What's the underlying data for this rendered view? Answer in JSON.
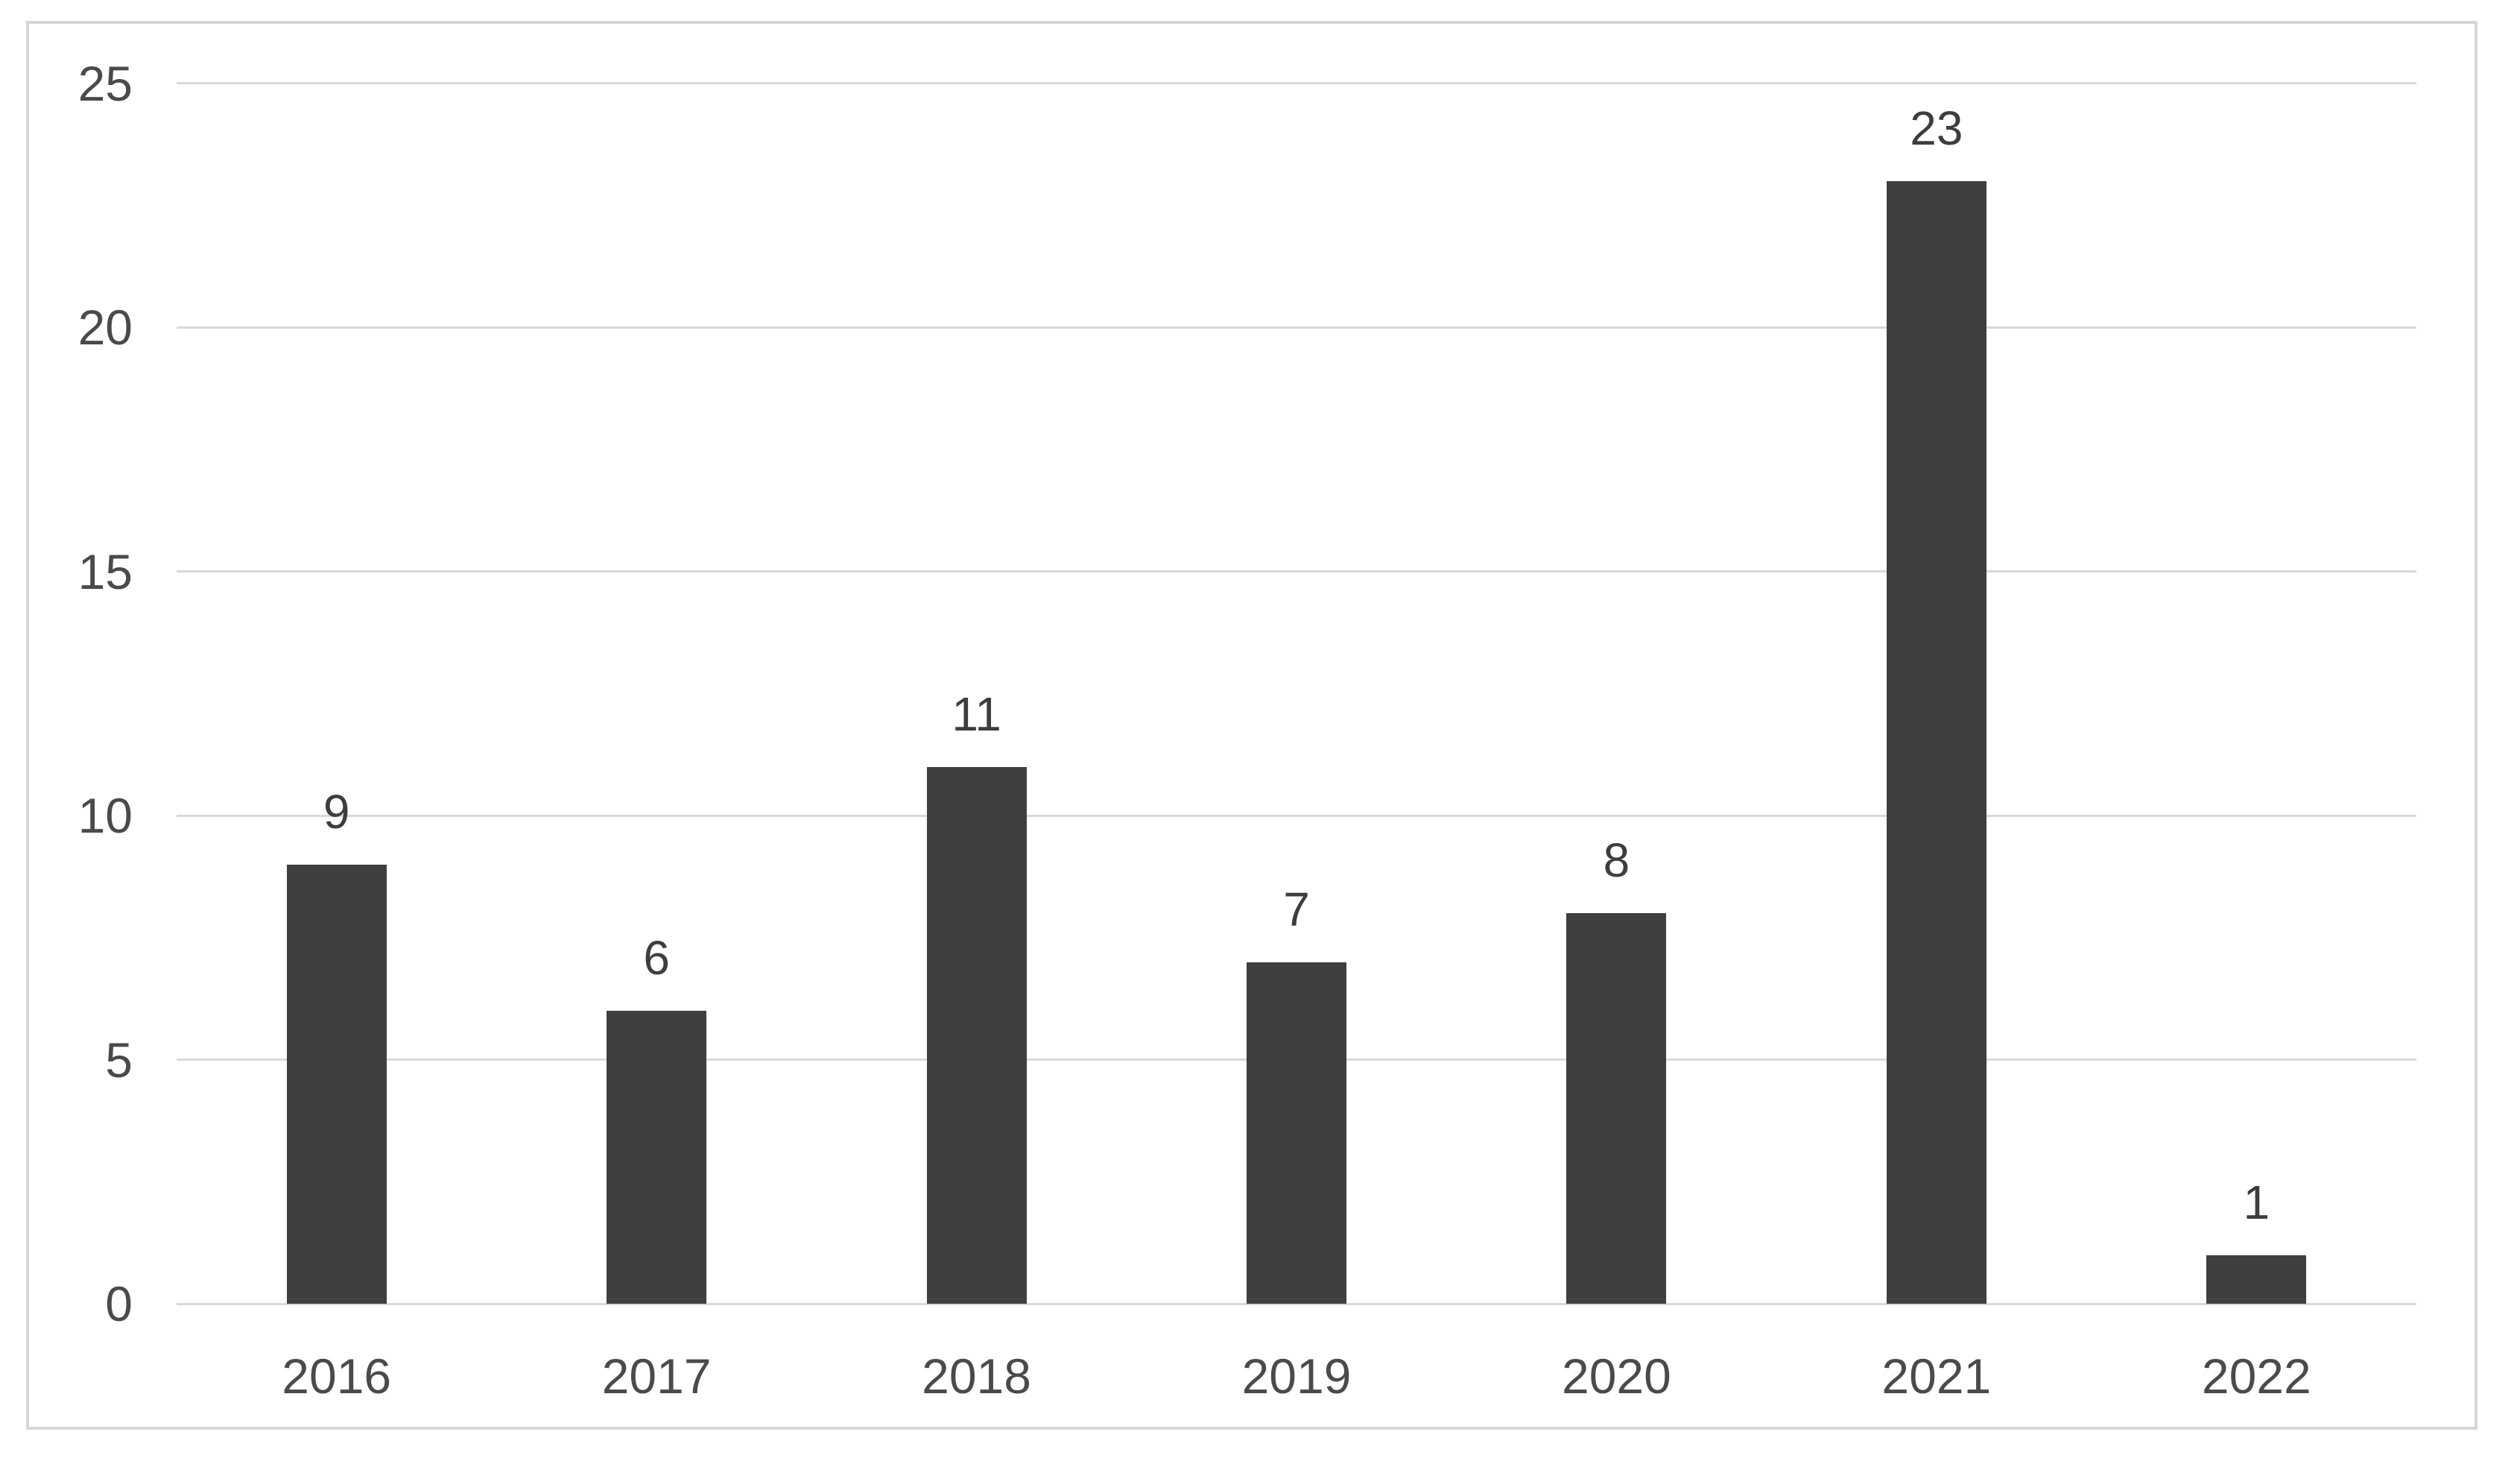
{
  "chart_data": {
    "type": "bar",
    "title": "",
    "xlabel": "",
    "ylabel": "",
    "categories": [
      "2016",
      "2017",
      "2018",
      "2019",
      "2020",
      "2021",
      "2022"
    ],
    "values": [
      9,
      6,
      11,
      7,
      8,
      23,
      1
    ],
    "data_labels": [
      "9",
      "6",
      "11",
      "7",
      "8",
      "23",
      "1"
    ],
    "yticks": [
      0,
      5,
      10,
      15,
      20,
      25
    ],
    "ytick_labels": [
      "0",
      "5",
      "10",
      "15",
      "20",
      "25"
    ],
    "ylim": [
      0,
      25
    ],
    "grid": true,
    "legend": false,
    "layout": {
      "legend_position": "none",
      "data_labels_position": "above-bars"
    },
    "colors": {
      "bar": "#3f3f3f",
      "gridline": "#d9d9d9",
      "axis_text": "#4a4a4a",
      "data_label_text": "#3d3d3d",
      "frame_border": "#d7d7d7",
      "background": "#ffffff"
    }
  }
}
